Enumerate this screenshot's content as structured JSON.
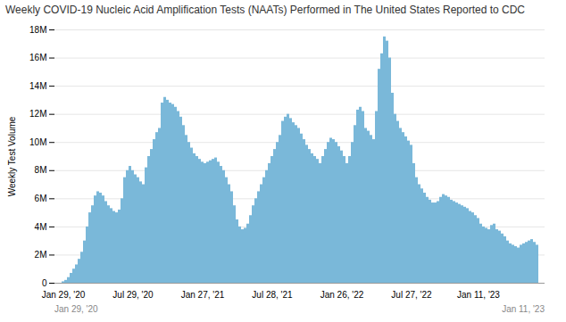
{
  "chart_data": {
    "type": "bar",
    "title": "Weekly COVID-19 Nucleic Acid Amplification Tests (NAATs) Performed in The United States Reported to CDC",
    "ylabel": "Weekly Test Volume",
    "color": "#7ab8d9",
    "grid": true,
    "ylim": [
      0,
      18000000
    ],
    "yticks": [
      0,
      {
        "value": 2000000,
        "label": "2M"
      },
      {
        "value": 4000000,
        "label": "4M"
      },
      {
        "value": 6000000,
        "label": "6M"
      },
      {
        "value": 8000000,
        "label": "8M"
      },
      {
        "value": 10000000,
        "label": "10M"
      },
      {
        "value": 12000000,
        "label": "12M"
      },
      {
        "value": 14000000,
        "label": "14M"
      },
      {
        "value": 16000000,
        "label": "16M"
      },
      {
        "value": 18000000,
        "label": "18M"
      }
    ],
    "annotations": [
      "Jan 29, '20",
      "Jan 11, '23"
    ],
    "categories": [
      "Jan 29, '20",
      null,
      null,
      null,
      null,
      null,
      null,
      null,
      null,
      null,
      null,
      null,
      null,
      null,
      null,
      null,
      null,
      null,
      null,
      null,
      null,
      null,
      null,
      null,
      null,
      null,
      "Jul 29, '20",
      null,
      null,
      null,
      null,
      null,
      null,
      null,
      null,
      null,
      null,
      null,
      null,
      null,
      null,
      null,
      null,
      null,
      null,
      null,
      null,
      null,
      null,
      null,
      null,
      null,
      "Jan 27, '21",
      null,
      null,
      null,
      null,
      null,
      null,
      null,
      null,
      null,
      null,
      null,
      null,
      null,
      null,
      null,
      null,
      null,
      null,
      null,
      null,
      null,
      null,
      null,
      null,
      null,
      "Jul 28, '21",
      null,
      null,
      null,
      null,
      null,
      null,
      null,
      null,
      null,
      null,
      null,
      null,
      null,
      null,
      null,
      null,
      null,
      null,
      null,
      null,
      null,
      null,
      null,
      null,
      null,
      "Jan 26, '22",
      null,
      null,
      null,
      null,
      null,
      null,
      null,
      null,
      null,
      null,
      null,
      null,
      null,
      null,
      null,
      null,
      null,
      null,
      null,
      null,
      null,
      null,
      null,
      null,
      null,
      "Jul 27, '22",
      null,
      null,
      null,
      null,
      null,
      null,
      null,
      null,
      null,
      null,
      null,
      null,
      null,
      null,
      null,
      null,
      null,
      null,
      null,
      null,
      null,
      null,
      null,
      null,
      "Jan 11, '23",
      null,
      null,
      null,
      null,
      null,
      null,
      null,
      null,
      null,
      null,
      null,
      null,
      null,
      null,
      null,
      null,
      null,
      null,
      null,
      null,
      null,
      null
    ],
    "values": [
      100000,
      200000,
      400000,
      700000,
      1000000,
      1300000,
      1700000,
      2200000,
      3000000,
      4000000,
      5000000,
      5500000,
      6200000,
      6500000,
      6400000,
      6200000,
      5800000,
      5500000,
      5300000,
      5100000,
      5000000,
      5200000,
      6000000,
      7500000,
      8000000,
      8300000,
      8000000,
      7700000,
      7500000,
      7200000,
      7000000,
      8200000,
      9000000,
      9500000,
      10200000,
      10700000,
      11000000,
      12800000,
      13200000,
      13000000,
      12800000,
      12700000,
      12500000,
      12200000,
      11800000,
      11200000,
      10500000,
      10000000,
      9600000,
      9200000,
      9000000,
      8800000,
      8600000,
      8500000,
      8600000,
      8700000,
      8800000,
      8900000,
      8600000,
      8300000,
      8000000,
      7500000,
      7000000,
      6500000,
      5500000,
      4500000,
      4000000,
      3800000,
      3900000,
      4200000,
      4800000,
      5500000,
      6000000,
      6500000,
      7000000,
      7500000,
      8000000,
      8500000,
      9000000,
      9500000,
      10000000,
      10500000,
      11500000,
      11800000,
      12000000,
      11700000,
      11400000,
      11200000,
      11000000,
      10600000,
      10200000,
      9800000,
      9500000,
      9200000,
      9000000,
      8800000,
      8500000,
      9000000,
      9500000,
      10000000,
      10300000,
      10200000,
      10000000,
      9700000,
      9400000,
      9000000,
      8500000,
      9000000,
      10000000,
      11200000,
      12300000,
      12500000,
      12200000,
      11000000,
      10800000,
      10500000,
      10200000,
      12200000,
      15200000,
      16300000,
      17500000,
      17200000,
      16000000,
      13500000,
      12000000,
      11500000,
      11000000,
      10700000,
      10400000,
      10100000,
      9800000,
      8500000,
      7500000,
      7000000,
      6700000,
      6400000,
      6100000,
      5900000,
      5700000,
      5700000,
      5800000,
      6100000,
      6300000,
      6200000,
      6100000,
      5900000,
      5800000,
      5700000,
      5600000,
      5500000,
      5400000,
      5300000,
      5100000,
      5000000,
      4800000,
      4600000,
      4200000,
      4000000,
      3900000,
      3800000,
      4100000,
      4200000,
      3800000,
      3700000,
      3500000,
      3300000,
      3000000,
      2800000,
      2700000,
      2600000,
      2500000,
      2700000,
      2800000,
      2900000,
      3000000,
      3100000,
      2900000,
      2700000
    ]
  }
}
